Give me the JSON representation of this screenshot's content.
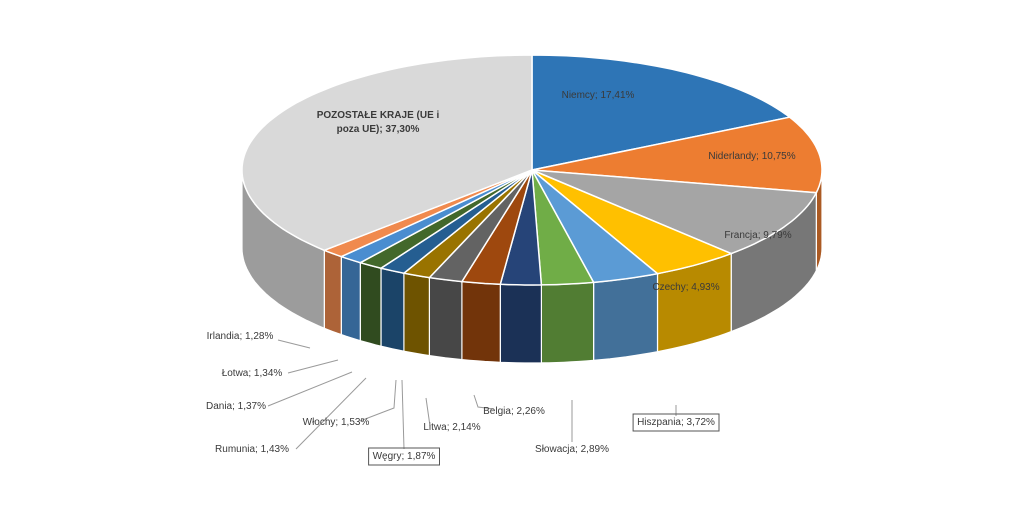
{
  "chart_data": {
    "type": "pie",
    "title": "",
    "slices": [
      {
        "label": "Niemcy; 17,41%",
        "name": "Niemcy",
        "value": 17.41,
        "color": "#2e75b6"
      },
      {
        "label": "Niderlandy; 10,75%",
        "name": "Niderlandy",
        "value": 10.75,
        "color": "#ed7d31"
      },
      {
        "label": "Francja; 9,79%",
        "name": "Francja",
        "value": 9.79,
        "color": "#a5a5a5"
      },
      {
        "label": "Czechy; 4,93%",
        "name": "Czechy",
        "value": 4.93,
        "color": "#ffc000"
      },
      {
        "label": "Hiszpania; 3,72%",
        "name": "Hiszpania",
        "value": 3.72,
        "color": "#5b9bd5"
      },
      {
        "label": "Słowacja; 2,89%",
        "name": "Słowacja",
        "value": 2.89,
        "color": "#70ad47"
      },
      {
        "label": "Belgia; 2,26%",
        "name": "Belgia",
        "value": 2.26,
        "color": "#264478"
      },
      {
        "label": "Litwa; 2,14%",
        "name": "Litwa",
        "value": 2.14,
        "color": "#9e480e"
      },
      {
        "label": "Węgry; 1,87%",
        "name": "Węgry",
        "value": 1.87,
        "color": "#636363"
      },
      {
        "label": "Włochy; 1,53%",
        "name": "Włochy",
        "value": 1.53,
        "color": "#997300"
      },
      {
        "label": "Rumunia; 1,43%",
        "name": "Rumunia",
        "value": 1.43,
        "color": "#255e91"
      },
      {
        "label": "Dania; 1,37%",
        "name": "Dania",
        "value": 1.37,
        "color": "#43682b"
      },
      {
        "label": "Łotwa; 1,34%",
        "name": "Łotwa",
        "value": 1.34,
        "color": "#4a8dd0"
      },
      {
        "label": "Irlandia; 1,28%",
        "name": "Irlandia",
        "value": 1.28,
        "color": "#f08a4e"
      },
      {
        "label": "POZOSTAŁE KRAJE (UE i poza UE); 37,30%",
        "name": "POZOSTAŁE KRAJE (UE i poza UE)",
        "value": 37.3,
        "color": "#d9d9d9"
      }
    ]
  }
}
